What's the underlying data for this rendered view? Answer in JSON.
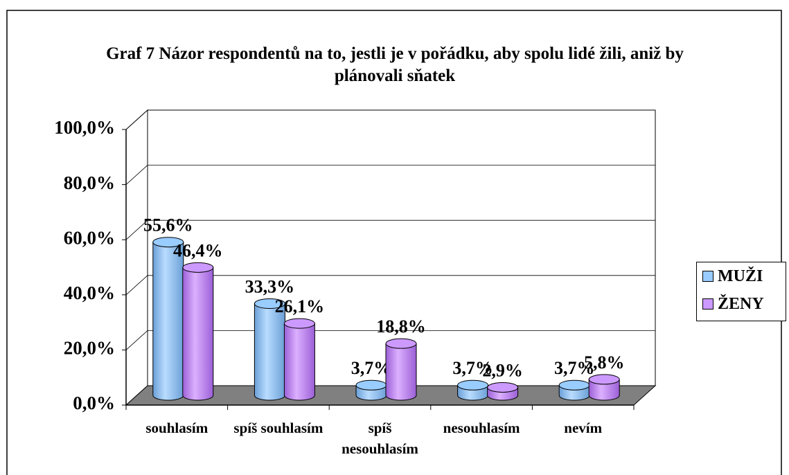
{
  "chart_data": {
    "type": "bar3d",
    "title": "Graf 7 Názor respondentů na to, jestli je v pořádku, aby spolu lidé žili, aniž by plánovali sňatek",
    "categories": [
      "souhlasím",
      "spíš souhlasím",
      "spíš nesouhlasím",
      "nesouhlasím",
      "nevím"
    ],
    "series": [
      {
        "name": "MUŽI",
        "color": "#99ccff",
        "values": [
          55.6,
          33.3,
          3.7,
          3.7,
          3.7
        ],
        "value_labels": [
          "55,6%",
          "33,3%",
          "3,7%",
          "3,7%",
          "3,7%"
        ]
      },
      {
        "name": "ŽENY",
        "color": "#cc99ff",
        "values": [
          46.4,
          26.1,
          18.8,
          2.9,
          5.8
        ],
        "value_labels": [
          "46,4%",
          "26,1%",
          "18,8%",
          "2,9%",
          "5,8%"
        ]
      }
    ],
    "ylim": [
      0,
      100
    ],
    "yticks": [
      {
        "value": 0,
        "label": "0,0%"
      },
      {
        "value": 20,
        "label": "20,0%"
      },
      {
        "value": 40,
        "label": "40,0%"
      },
      {
        "value": 60,
        "label": "60,0%"
      },
      {
        "value": 80,
        "label": "80,0%"
      },
      {
        "value": 100,
        "label": "100,0%"
      }
    ],
    "grid": true,
    "legend": "right"
  }
}
